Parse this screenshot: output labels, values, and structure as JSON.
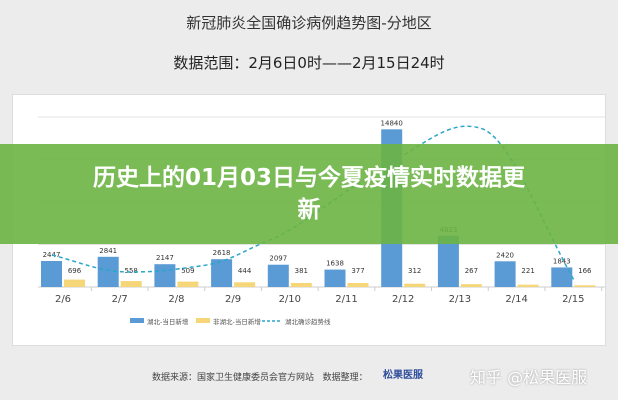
{
  "banner": {
    "text": "历史上的01月03日与今夏疫情实时数据更新"
  },
  "footer": {
    "source": "数据来源：国家卫生健康委员会官方网站",
    "organizer": "数据整理：",
    "logo": "松果医服",
    "watermark": "知乎 @松果医服"
  },
  "chart_data": {
    "type": "bar",
    "title": "新冠肺炎全国确诊病例趋势图-分地区",
    "subtitle": "数据范围：2月6日0时——2月15日24时",
    "categories": [
      "2/6",
      "2/7",
      "2/8",
      "2/9",
      "2/10",
      "2/11",
      "2/12",
      "2/13",
      "2/14",
      "2/15"
    ],
    "series": [
      {
        "name": "湖北-当日新增",
        "color": "#5b9bd5",
        "values": [
          2447,
          2841,
          2147,
          2618,
          2097,
          1638,
          14840,
          4823,
          2420,
          1843
        ]
      },
      {
        "name": "非湖北-当日新增",
        "color": "#f5d77a",
        "values": [
          696,
          558,
          509,
          444,
          381,
          377,
          312,
          267,
          221,
          166
        ]
      },
      {
        "name": "湖北确诊趋势线",
        "color": "#2aa6c8",
        "type": "dashed-line"
      }
    ],
    "ylim": [
      0,
      16000
    ],
    "grid": true,
    "legend": "bottom"
  }
}
